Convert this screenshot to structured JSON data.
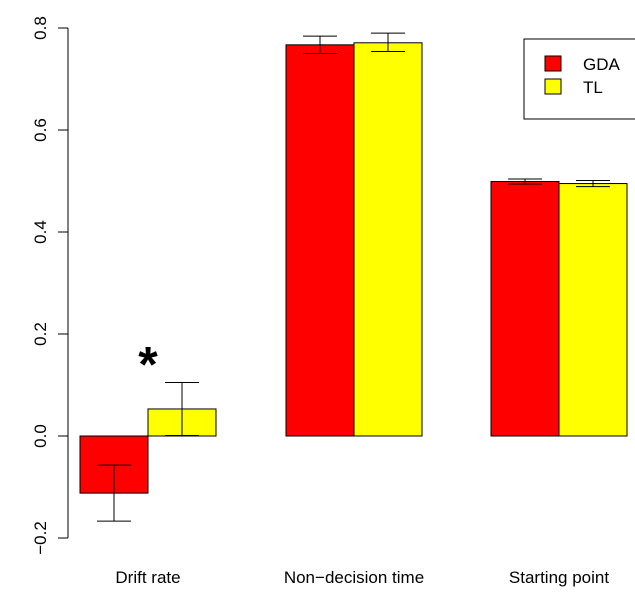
{
  "chart_data": {
    "type": "bar",
    "title": "",
    "xlabel": "",
    "ylabel": "",
    "categories": [
      "Drift rate",
      "Non−decision time",
      "Starting point"
    ],
    "series": [
      {
        "name": "GDA",
        "color": "#ff0000",
        "values": [
          -0.112,
          0.767,
          0.499
        ],
        "err_low": [
          -0.167,
          0.75,
          0.494
        ],
        "err_high": [
          -0.057,
          0.784,
          0.504
        ]
      },
      {
        "name": "TL",
        "color": "#ffff00",
        "values": [
          0.053,
          0.771,
          0.495
        ],
        "err_low": [
          0.001,
          0.754,
          0.489
        ],
        "err_high": [
          0.105,
          0.79,
          0.501
        ]
      }
    ],
    "ylim": [
      -0.2,
      0.8
    ],
    "yticks": [
      -0.2,
      0.0,
      0.2,
      0.4,
      0.6,
      0.8
    ],
    "ytick_labels": [
      "−0.2",
      "0.0",
      "0.2",
      "0.4",
      "0.6",
      "0.8"
    ],
    "grid": false,
    "legend": {
      "placement": "top-right"
    },
    "annotations": [
      {
        "text": "*",
        "category": "Drift rate",
        "y": 0.17
      }
    ]
  }
}
